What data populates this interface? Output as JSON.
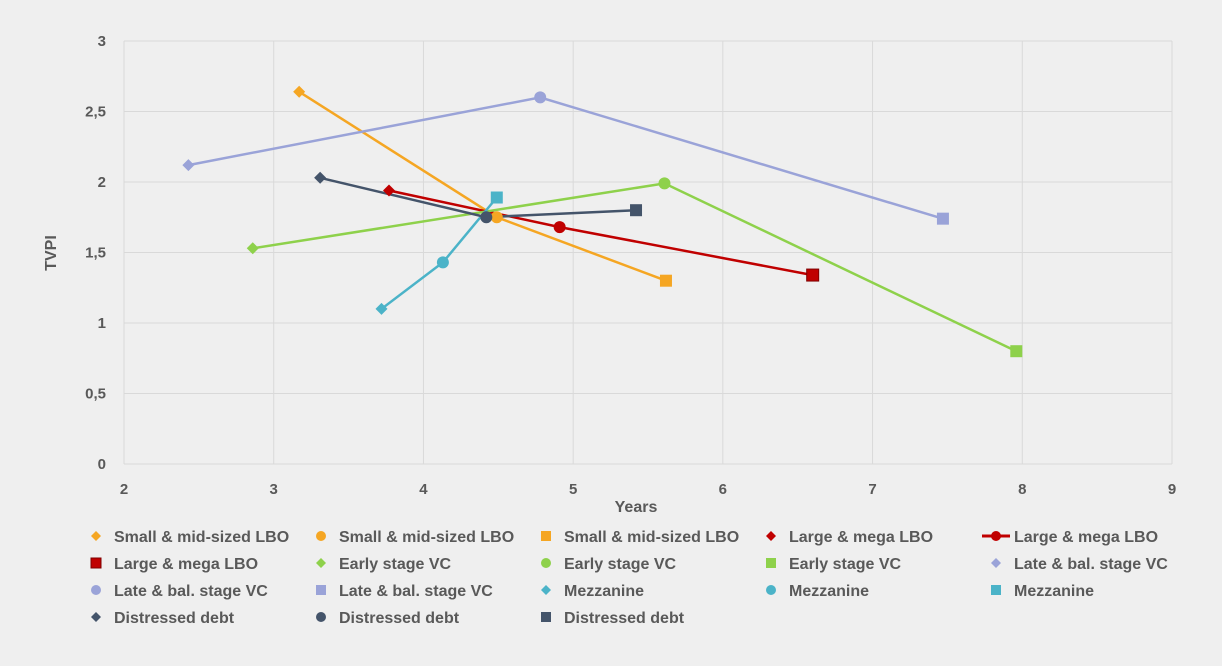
{
  "chart_data": {
    "type": "scatter",
    "title": "",
    "xlabel": "Years",
    "ylabel": "TVPI",
    "xlim": [
      2,
      9
    ],
    "ylim": [
      0,
      3
    ],
    "x_ticks": [
      "2",
      "3",
      "4",
      "5",
      "6",
      "7",
      "8",
      "9"
    ],
    "y_ticks": [
      "0",
      "0,5",
      "1",
      "1,5",
      "2",
      "2,5",
      "3"
    ],
    "grid": true,
    "legend_position": "bottom",
    "series": [
      {
        "name": "Small & mid-sized LBO",
        "marker": "diamond",
        "line": false,
        "color": "#f5a623",
        "points": [
          [
            3.17,
            2.64
          ]
        ]
      },
      {
        "name": "Small & mid-sized LBO",
        "marker": "circle",
        "line": false,
        "color": "#f5a623",
        "points": [
          [
            4.49,
            1.75
          ]
        ]
      },
      {
        "name": "Small & mid-sized LBO",
        "marker": "square",
        "line": false,
        "color": "#f5a623",
        "points": [
          [
            5.62,
            1.3
          ]
        ]
      },
      {
        "name": "Large & mega LBO",
        "marker": "diamond",
        "line": false,
        "color": "#c00000",
        "points": [
          [
            3.77,
            1.94
          ]
        ]
      },
      {
        "name": "Large & mega LBO",
        "marker": "circle",
        "line": true,
        "color": "#c00000",
        "points": [
          [
            4.91,
            1.68
          ]
        ]
      },
      {
        "name": "Large & mega LBO",
        "marker": "square",
        "line": false,
        "color": "#c00000",
        "points": [
          [
            6.6,
            1.34
          ]
        ]
      },
      {
        "name": "Early stage VC",
        "marker": "diamond",
        "line": false,
        "color": "#8ed14b",
        "points": [
          [
            2.86,
            1.53
          ]
        ]
      },
      {
        "name": "Early stage VC",
        "marker": "circle",
        "line": false,
        "color": "#8ed14b",
        "points": [
          [
            5.61,
            1.99
          ]
        ]
      },
      {
        "name": "Early stage VC",
        "marker": "square",
        "line": false,
        "color": "#8ed14b",
        "points": [
          [
            7.96,
            0.8
          ]
        ]
      },
      {
        "name": "Late & bal. stage VC",
        "marker": "diamond",
        "line": false,
        "color": "#9aa3d8",
        "points": [
          [
            2.43,
            2.12
          ]
        ]
      },
      {
        "name": "Late & bal. stage VC",
        "marker": "circle",
        "line": false,
        "color": "#9aa3d8",
        "points": [
          [
            4.78,
            2.6
          ]
        ]
      },
      {
        "name": "Late & bal. stage VC",
        "marker": "square",
        "line": false,
        "color": "#9aa3d8",
        "points": [
          [
            7.47,
            1.74
          ]
        ]
      },
      {
        "name": "Mezzanine",
        "marker": "diamond",
        "line": false,
        "color": "#4bb3c8",
        "points": [
          [
            3.72,
            1.1
          ]
        ]
      },
      {
        "name": "Mezzanine",
        "marker": "circle",
        "line": false,
        "color": "#4bb3c8",
        "points": [
          [
            4.13,
            1.43
          ]
        ]
      },
      {
        "name": "Mezzanine",
        "marker": "square",
        "line": false,
        "color": "#4bb3c8",
        "points": [
          [
            4.49,
            1.89
          ]
        ]
      },
      {
        "name": "Distressed debt",
        "marker": "diamond",
        "line": false,
        "color": "#44546a",
        "points": [
          [
            3.31,
            2.03
          ]
        ]
      },
      {
        "name": "Distressed debt",
        "marker": "circle",
        "line": false,
        "color": "#44546a",
        "points": [
          [
            4.42,
            1.75
          ]
        ]
      },
      {
        "name": "Distressed debt",
        "marker": "square",
        "line": false,
        "color": "#44546a",
        "points": [
          [
            5.42,
            1.8
          ]
        ]
      }
    ],
    "connectors": [
      {
        "group": "Small & mid-sized LBO",
        "color": "#f5a623",
        "series_indices": [
          0,
          1,
          2
        ]
      },
      {
        "group": "Large & mega LBO",
        "color": "#c00000",
        "series_indices": [
          3,
          4,
          5
        ]
      },
      {
        "group": "Early stage VC",
        "color": "#8ed14b",
        "series_indices": [
          6,
          7,
          8
        ]
      },
      {
        "group": "Late & bal. stage VC",
        "color": "#9aa3d8",
        "series_indices": [
          9,
          10,
          11
        ]
      },
      {
        "group": "Mezzanine",
        "color": "#4bb3c8",
        "series_indices": [
          12,
          13,
          14
        ]
      },
      {
        "group": "Distressed debt",
        "color": "#44546a",
        "series_indices": [
          15,
          16,
          17
        ]
      }
    ]
  }
}
